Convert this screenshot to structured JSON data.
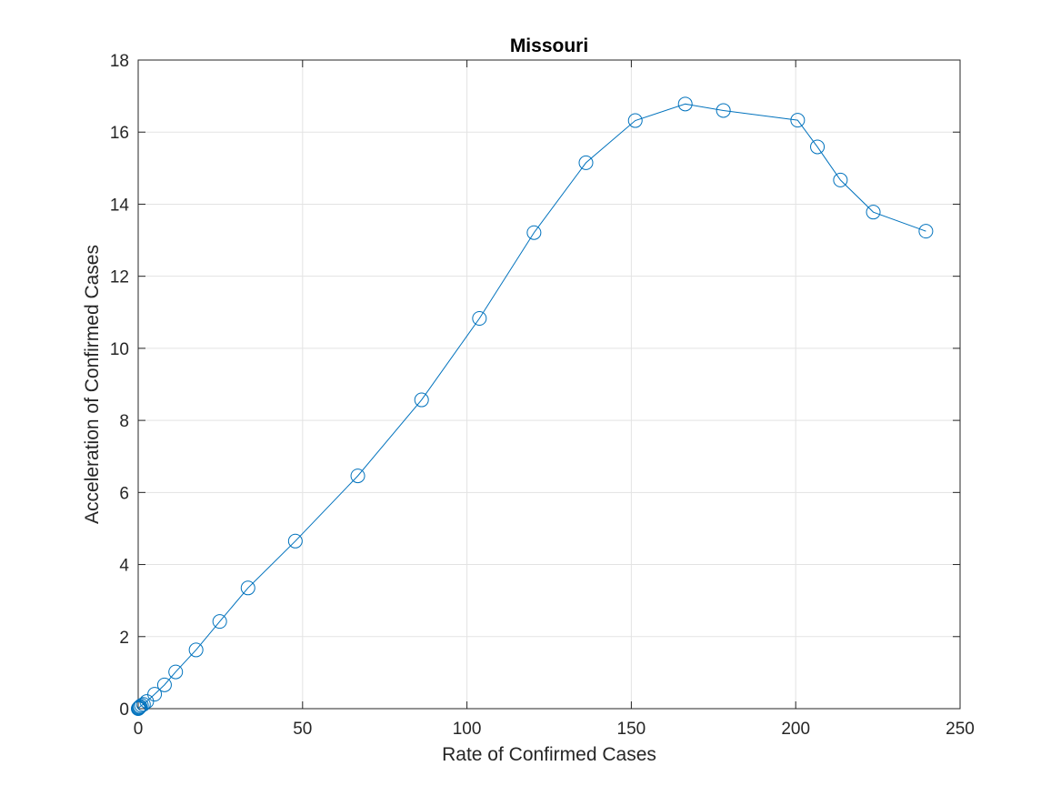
{
  "chart_data": {
    "type": "line",
    "title": "Missouri",
    "xlabel": "Rate of Confirmed Cases",
    "ylabel": "Acceleration of Confirmed Cases",
    "xlim": [
      0,
      250
    ],
    "ylim": [
      0,
      18
    ],
    "xticks": [
      0,
      50,
      100,
      150,
      200,
      250
    ],
    "yticks": [
      0,
      2,
      4,
      6,
      8,
      10,
      12,
      14,
      16,
      18
    ],
    "xtick_labels": [
      "0",
      "50",
      "100",
      "150",
      "200",
      "250"
    ],
    "ytick_labels": [
      "0",
      "2",
      "4",
      "6",
      "8",
      "10",
      "12",
      "14",
      "16",
      "18"
    ],
    "grid": true,
    "marker": "open-circle",
    "line_color": "#0072BD",
    "series": [
      {
        "x": [
          0.0,
          0.1,
          0.2,
          0.4,
          0.6,
          1.0,
          1.6,
          2.6,
          5.0,
          8.0,
          11.4,
          17.6,
          24.8,
          33.4,
          47.8,
          66.8,
          86.2,
          103.8,
          120.4,
          136.2,
          151.2,
          166.4,
          178.0,
          200.6,
          206.6,
          213.6,
          223.6,
          239.6
        ],
        "y": [
          0.0,
          0.01,
          0.02,
          0.04,
          0.06,
          0.09,
          0.12,
          0.2,
          0.4,
          0.66,
          1.02,
          1.63,
          2.42,
          3.35,
          4.65,
          6.46,
          8.57,
          10.83,
          13.21,
          15.15,
          16.32,
          16.78,
          16.6,
          16.33,
          15.59,
          14.67,
          13.78,
          13.25
        ]
      }
    ]
  }
}
